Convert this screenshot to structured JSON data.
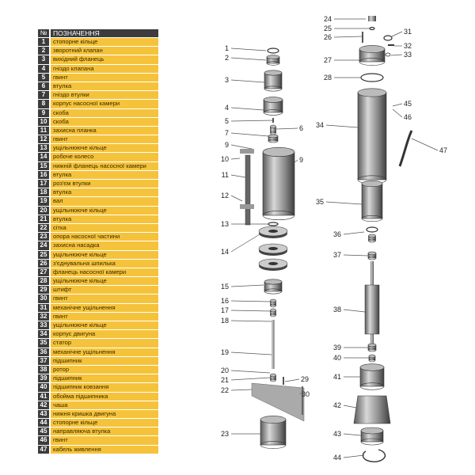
{
  "legend": {
    "header_num": "№",
    "header_title": "ПОЗНАЧЕННЯ",
    "items": [
      {
        "n": "1",
        "t": "стопорне кільце"
      },
      {
        "n": "2",
        "t": "зворотний клапан"
      },
      {
        "n": "3",
        "t": "вихідний фланець"
      },
      {
        "n": "4",
        "t": "гніздо клапана"
      },
      {
        "n": "5",
        "t": "гвинт"
      },
      {
        "n": "6",
        "t": "втулка"
      },
      {
        "n": "7",
        "t": "гніздо втулки"
      },
      {
        "n": "8",
        "t": "корпус насосної камери"
      },
      {
        "n": "9",
        "t": "скоба"
      },
      {
        "n": "10",
        "t": "скоба"
      },
      {
        "n": "11",
        "t": "захисна планка"
      },
      {
        "n": "12",
        "t": "гвинт"
      },
      {
        "n": "13",
        "t": "ущільнююче кільце"
      },
      {
        "n": "14",
        "t": "робоче колесо"
      },
      {
        "n": "15",
        "t": "нижній фланець насосної камери"
      },
      {
        "n": "16",
        "t": "втулка"
      },
      {
        "n": "17",
        "t": "роз'єм втулки"
      },
      {
        "n": "18",
        "t": "втулка"
      },
      {
        "n": "19",
        "t": "вал"
      },
      {
        "n": "20",
        "t": "ущільнююче кільце"
      },
      {
        "n": "21",
        "t": "втулка"
      },
      {
        "n": "22",
        "t": "сітка"
      },
      {
        "n": "23",
        "t": "опора насосної частини"
      },
      {
        "n": "24",
        "t": "захисна насадка"
      },
      {
        "n": "25",
        "t": "ущільнююче кільце"
      },
      {
        "n": "26",
        "t": "з'єднувальна шпилька"
      },
      {
        "n": "27",
        "t": "фланець насосної камери"
      },
      {
        "n": "28",
        "t": "ущільнююче кільце"
      },
      {
        "n": "29",
        "t": "штифт"
      },
      {
        "n": "30",
        "t": "гвинт"
      },
      {
        "n": "31",
        "t": "механічне ущільнення"
      },
      {
        "n": "32",
        "t": "гвинт"
      },
      {
        "n": "33",
        "t": "ущільнююче кільце"
      },
      {
        "n": "34",
        "t": "корпус двигуна"
      },
      {
        "n": "35",
        "t": "статор"
      },
      {
        "n": "36",
        "t": "механічне ущільнення"
      },
      {
        "n": "37",
        "t": "підшипник"
      },
      {
        "n": "38",
        "t": "ротор"
      },
      {
        "n": "39",
        "t": "підшипник"
      },
      {
        "n": "40",
        "t": "підшипник ковзання"
      },
      {
        "n": "41",
        "t": "обойма підшипника"
      },
      {
        "n": "42",
        "t": "чаша"
      },
      {
        "n": "43",
        "t": "нижня кришка двигуна"
      },
      {
        "n": "44",
        "t": "стопорне кільце"
      },
      {
        "n": "45",
        "t": "направляюча втулка"
      },
      {
        "n": "46",
        "t": "гвинт"
      },
      {
        "n": "47",
        "t": "кабель живлення"
      }
    ]
  },
  "callouts": [
    "1",
    "2",
    "3",
    "4",
    "5",
    "6",
    "7",
    "9",
    "10",
    "9",
    "11",
    "12",
    "13",
    "14",
    "15",
    "16",
    "17",
    "18",
    "19",
    "20",
    "21",
    "29",
    "22",
    "30",
    "23",
    "24",
    "25",
    "26",
    "31",
    "32",
    "33",
    "27",
    "28",
    "45",
    "46",
    "34",
    "47",
    "35",
    "36",
    "37",
    "38",
    "39",
    "40",
    "41",
    "42",
    "43",
    "44"
  ],
  "colors": {
    "legend_fill": "#f5c33b",
    "legend_num": "#3c3c3c",
    "metal": "#8a8a8a"
  }
}
